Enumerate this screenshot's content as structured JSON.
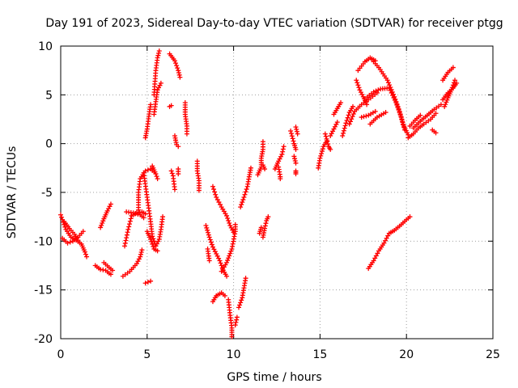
{
  "chart_data": {
    "type": "scatter",
    "title": "Day 191 of 2023, Sidereal Day-to-day VTEC variation (SDTVAR) for receiver ptgg",
    "xlabel": "GPS time / hours",
    "ylabel": "SDTVAR / TECUs",
    "xlim": [
      0,
      25
    ],
    "ylim": [
      -20,
      10
    ],
    "x_ticks": [
      0,
      5,
      10,
      15,
      20,
      25
    ],
    "y_ticks": [
      -20,
      -15,
      -10,
      -5,
      0,
      5,
      10
    ],
    "grid": true,
    "marker": "+",
    "color": "#ff0000",
    "series_tracks": [
      [
        [
          0.0,
          -7.3
        ],
        [
          0.3,
          -8.8
        ],
        [
          0.6,
          -9.6
        ],
        [
          0.9,
          -9.9
        ],
        [
          1.2,
          -10.3
        ],
        [
          1.4,
          -11.1
        ],
        [
          1.5,
          -11.6
        ]
      ],
      [
        [
          0.1,
          -9.7
        ],
        [
          0.4,
          -10.2
        ],
        [
          0.7,
          -10.0
        ],
        [
          1.0,
          -9.6
        ],
        [
          1.3,
          -9.0
        ]
      ],
      [
        [
          0.2,
          -8.0
        ],
        [
          0.5,
          -8.7
        ],
        [
          0.8,
          -9.3
        ],
        [
          1.0,
          -9.9
        ]
      ],
      [
        [
          2.0,
          -12.5
        ],
        [
          2.3,
          -12.9
        ],
        [
          2.6,
          -13.0
        ],
        [
          2.8,
          -13.3
        ],
        [
          2.9,
          -13.4
        ]
      ],
      [
        [
          2.3,
          -8.6
        ],
        [
          2.5,
          -7.7
        ],
        [
          2.7,
          -6.9
        ],
        [
          2.9,
          -6.2
        ]
      ],
      [
        [
          2.5,
          -12.2
        ],
        [
          2.8,
          -12.7
        ],
        [
          3.0,
          -13.0
        ]
      ],
      [
        [
          3.6,
          -13.6
        ],
        [
          4.0,
          -13.1
        ],
        [
          4.4,
          -12.3
        ],
        [
          4.6,
          -11.6
        ],
        [
          4.7,
          -10.9
        ]
      ],
      [
        [
          3.7,
          -10.5
        ],
        [
          3.9,
          -8.8
        ],
        [
          4.1,
          -7.4
        ],
        [
          4.4,
          -7.1
        ],
        [
          4.7,
          -7.0
        ],
        [
          4.9,
          -7.2
        ]
      ],
      [
        [
          3.8,
          -7.0
        ],
        [
          4.2,
          -7.1
        ],
        [
          4.6,
          -7.3
        ],
        [
          4.8,
          -7.6
        ]
      ],
      [
        [
          4.5,
          -6.8
        ],
        [
          4.5,
          -5.0
        ],
        [
          4.6,
          -3.6
        ],
        [
          4.9,
          -2.8
        ],
        [
          5.2,
          -2.6
        ],
        [
          5.4,
          -2.9
        ]
      ],
      [
        [
          4.8,
          -3.0
        ],
        [
          5.0,
          -5.5
        ],
        [
          5.2,
          -8.0
        ],
        [
          5.3,
          -9.5
        ],
        [
          5.5,
          -10.5
        ]
      ],
      [
        [
          4.9,
          -14.3
        ],
        [
          5.2,
          -14.1
        ]
      ],
      [
        [
          5.0,
          -9.0
        ],
        [
          5.2,
          -9.8
        ],
        [
          5.4,
          -10.8
        ],
        [
          5.6,
          -11.0
        ]
      ],
      [
        [
          5.5,
          -10.5
        ],
        [
          5.7,
          -9.8
        ],
        [
          5.8,
          -8.8
        ],
        [
          5.9,
          -7.5
        ]
      ],
      [
        [
          5.3,
          -2.3
        ],
        [
          5.5,
          -3.1
        ],
        [
          5.6,
          -3.6
        ]
      ],
      [
        [
          4.9,
          0.6
        ],
        [
          5.0,
          1.5
        ],
        [
          5.1,
          2.8
        ],
        [
          5.2,
          4.0
        ]
      ],
      [
        [
          5.4,
          5.0
        ],
        [
          5.5,
          7.5
        ],
        [
          5.6,
          8.8
        ],
        [
          5.7,
          9.5
        ]
      ],
      [
        [
          5.4,
          3.0
        ],
        [
          5.5,
          4.3
        ],
        [
          5.6,
          5.5
        ],
        [
          5.8,
          6.2
        ]
      ],
      [
        [
          6.3,
          9.2
        ],
        [
          6.6,
          8.5
        ],
        [
          6.8,
          7.5
        ],
        [
          6.9,
          6.8
        ]
      ],
      [
        [
          6.3,
          3.8
        ],
        [
          6.4,
          3.9
        ]
      ],
      [
        [
          6.4,
          -2.8
        ],
        [
          6.5,
          -3.3
        ],
        [
          6.6,
          -4.7
        ]
      ],
      [
        [
          6.6,
          0.8
        ],
        [
          6.7,
          -0.1
        ],
        [
          6.8,
          -0.3
        ]
      ],
      [
        [
          6.8,
          -2.6
        ],
        [
          6.8,
          -3.1
        ]
      ],
      [
        [
          7.2,
          4.2
        ],
        [
          7.2,
          3.0
        ],
        [
          7.3,
          1.8
        ],
        [
          7.3,
          1.0
        ]
      ],
      [
        [
          7.9,
          -1.8
        ],
        [
          7.9,
          -2.8
        ],
        [
          8.0,
          -3.8
        ],
        [
          8.0,
          -4.8
        ]
      ],
      [
        [
          8.8,
          -4.4
        ],
        [
          9.0,
          -5.5
        ],
        [
          9.3,
          -6.5
        ],
        [
          9.6,
          -7.4
        ],
        [
          9.8,
          -8.4
        ],
        [
          10.0,
          -9.1
        ]
      ],
      [
        [
          9.6,
          -13.6
        ],
        [
          9.4,
          -13.0
        ],
        [
          9.2,
          -12.0
        ],
        [
          8.8,
          -10.6
        ],
        [
          8.6,
          -9.6
        ],
        [
          8.4,
          -8.4
        ]
      ],
      [
        [
          8.5,
          -10.8
        ],
        [
          8.6,
          -12.0
        ]
      ],
      [
        [
          9.3,
          -13.1
        ],
        [
          9.6,
          -12.2
        ],
        [
          9.9,
          -10.8
        ],
        [
          10.1,
          -9.0
        ],
        [
          10.1,
          -8.3
        ]
      ],
      [
        [
          8.8,
          -16.2
        ],
        [
          9.0,
          -15.6
        ],
        [
          9.3,
          -15.3
        ],
        [
          9.5,
          -15.6
        ]
      ],
      [
        [
          9.7,
          -16.0
        ],
        [
          9.8,
          -17.6
        ],
        [
          9.9,
          -18.9
        ],
        [
          9.9,
          -19.8
        ]
      ],
      [
        [
          10.1,
          -18.6
        ],
        [
          10.2,
          -17.8
        ]
      ],
      [
        [
          10.3,
          -16.8
        ],
        [
          10.5,
          -15.8
        ],
        [
          10.6,
          -14.8
        ],
        [
          10.7,
          -13.8
        ]
      ],
      [
        [
          10.4,
          -6.5
        ],
        [
          10.6,
          -5.5
        ],
        [
          10.8,
          -4.4
        ],
        [
          10.9,
          -3.4
        ],
        [
          11.0,
          -2.5
        ]
      ],
      [
        [
          11.5,
          -9.2
        ],
        [
          11.6,
          -8.6
        ]
      ],
      [
        [
          11.7,
          -9.6
        ],
        [
          11.8,
          -8.7
        ],
        [
          11.9,
          -7.9
        ],
        [
          12.0,
          -7.5
        ]
      ],
      [
        [
          11.4,
          -3.2
        ],
        [
          11.6,
          -2.4
        ],
        [
          11.6,
          -1.5
        ],
        [
          11.7,
          -0.6
        ],
        [
          11.7,
          0.2
        ]
      ],
      [
        [
          11.7,
          -2.2
        ],
        [
          11.8,
          -2.6
        ]
      ],
      [
        [
          12.4,
          -2.6
        ],
        [
          12.6,
          -1.8
        ],
        [
          12.8,
          -1.1
        ],
        [
          12.9,
          -0.3
        ]
      ],
      [
        [
          12.6,
          -2.4
        ],
        [
          12.7,
          -3.4
        ],
        [
          12.7,
          -3.6
        ]
      ],
      [
        [
          13.3,
          1.3
        ],
        [
          13.5,
          0.0
        ],
        [
          13.6,
          -0.6
        ]
      ],
      [
        [
          13.5,
          -1.3
        ],
        [
          13.6,
          -2.0
        ]
      ],
      [
        [
          13.6,
          1.7
        ],
        [
          13.7,
          1.0
        ]
      ],
      [
        [
          13.6,
          -2.8
        ],
        [
          13.6,
          -3.1
        ]
      ],
      [
        [
          14.9,
          -2.5
        ],
        [
          15.0,
          -1.5
        ],
        [
          15.2,
          -0.3
        ],
        [
          15.4,
          0.3
        ]
      ],
      [
        [
          15.3,
          1.0
        ],
        [
          15.5,
          -0.3
        ],
        [
          15.6,
          -0.6
        ]
      ],
      [
        [
          15.6,
          0.8
        ],
        [
          15.8,
          1.5
        ],
        [
          16.0,
          2.2
        ]
      ],
      [
        [
          15.8,
          3.0
        ],
        [
          16.0,
          3.6
        ],
        [
          16.2,
          4.2
        ]
      ],
      [
        [
          16.3,
          0.8
        ],
        [
          16.5,
          2.1
        ],
        [
          16.7,
          3.2
        ],
        [
          16.9,
          3.8
        ]
      ],
      [
        [
          16.7,
          2.0
        ],
        [
          17.0,
          3.3
        ],
        [
          17.4,
          4.0
        ],
        [
          17.8,
          4.5
        ],
        [
          18.3,
          5.2
        ]
      ],
      [
        [
          17.1,
          6.5
        ],
        [
          17.3,
          5.5
        ],
        [
          17.5,
          4.8
        ],
        [
          17.7,
          4.0
        ]
      ],
      [
        [
          17.2,
          7.5
        ],
        [
          17.6,
          8.4
        ],
        [
          17.9,
          8.8
        ],
        [
          18.2,
          8.5
        ]
      ],
      [
        [
          18.0,
          8.6
        ],
        [
          18.4,
          7.8
        ],
        [
          18.9,
          6.5
        ],
        [
          19.3,
          4.8
        ],
        [
          19.6,
          3.3
        ],
        [
          19.8,
          2.0
        ],
        [
          20.1,
          0.9
        ]
      ],
      [
        [
          17.6,
          4.6
        ],
        [
          18.1,
          5.3
        ],
        [
          18.5,
          5.6
        ],
        [
          19.0,
          5.7
        ],
        [
          19.4,
          4.2
        ],
        [
          19.7,
          2.7
        ],
        [
          19.9,
          1.4
        ]
      ],
      [
        [
          17.4,
          2.7
        ],
        [
          17.8,
          2.9
        ],
        [
          18.2,
          3.3
        ]
      ],
      [
        [
          17.9,
          2.0
        ],
        [
          18.3,
          2.7
        ],
        [
          18.8,
          3.2
        ]
      ],
      [
        [
          17.8,
          -12.8
        ],
        [
          18.1,
          -12.0
        ],
        [
          18.4,
          -11.0
        ],
        [
          18.7,
          -10.2
        ],
        [
          19.0,
          -9.2
        ],
        [
          19.3,
          -8.9
        ],
        [
          19.7,
          -8.3
        ],
        [
          20.0,
          -7.8
        ],
        [
          20.2,
          -7.5
        ]
      ],
      [
        [
          20.1,
          0.6
        ],
        [
          20.4,
          1.0
        ],
        [
          20.7,
          1.6
        ],
        [
          21.0,
          2.0
        ],
        [
          21.4,
          2.5
        ],
        [
          21.7,
          3.1
        ]
      ],
      [
        [
          20.4,
          1.6
        ],
        [
          20.8,
          2.3
        ],
        [
          21.2,
          2.9
        ],
        [
          21.6,
          3.5
        ],
        [
          22.0,
          4.0
        ]
      ],
      [
        [
          20.2,
          1.8
        ],
        [
          20.5,
          2.4
        ],
        [
          20.8,
          2.9
        ]
      ],
      [
        [
          21.5,
          1.4
        ],
        [
          21.7,
          1.1
        ]
      ],
      [
        [
          22.1,
          4.5
        ],
        [
          22.4,
          5.2
        ],
        [
          22.7,
          5.7
        ],
        [
          22.9,
          6.2
        ]
      ],
      [
        [
          22.2,
          3.8
        ],
        [
          22.4,
          4.7
        ],
        [
          22.6,
          5.5
        ],
        [
          22.8,
          6.5
        ]
      ],
      [
        [
          22.1,
          6.5
        ],
        [
          22.4,
          7.3
        ],
        [
          22.7,
          7.8
        ]
      ]
    ]
  }
}
